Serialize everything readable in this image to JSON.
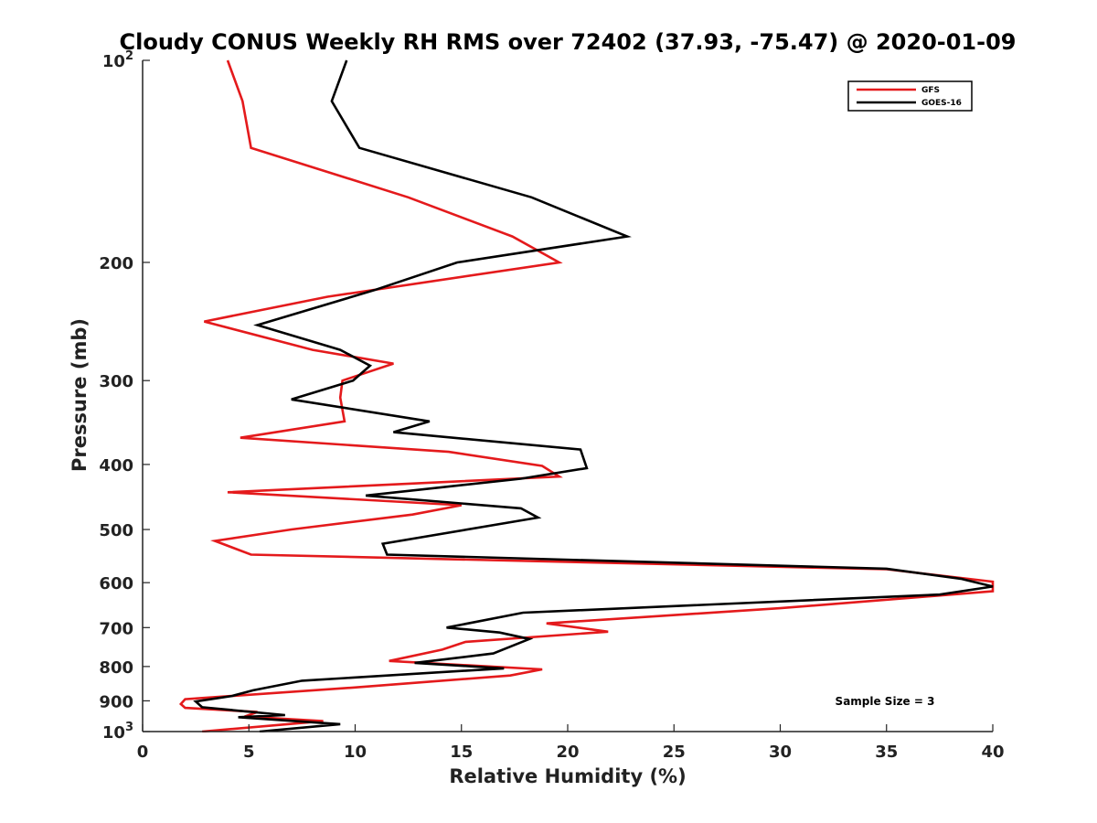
{
  "chart_data": {
    "type": "line",
    "title": "Cloudy CONUS Weekly RH RMS over 72402 (37.93, -75.47) @ 2020-01-09",
    "xlabel": "Relative Humidity (%)",
    "ylabel": "Pressure (mb)",
    "xlim": [
      0,
      40
    ],
    "ylim": [
      100,
      1000
    ],
    "y_scale": "log",
    "y_reversed": true,
    "grid": false,
    "legend_position": "top-right",
    "x_ticks": [
      0,
      5,
      10,
      15,
      20,
      25,
      30,
      35,
      40
    ],
    "x_tick_labels": [
      "0",
      "5",
      "10",
      "15",
      "20",
      "25",
      "30",
      "35",
      "40"
    ],
    "y_ticks": [
      100,
      200,
      300,
      400,
      500,
      600,
      700,
      800,
      900,
      1000
    ],
    "y_tick_labels": [
      {
        "base": "10",
        "exp": "2"
      },
      {
        "base": "200"
      },
      {
        "base": "300"
      },
      {
        "base": "400"
      },
      {
        "base": "500"
      },
      {
        "base": "600"
      },
      {
        "base": "700"
      },
      {
        "base": "800"
      },
      {
        "base": "900"
      },
      {
        "base": "10",
        "exp": "3"
      }
    ],
    "annotation": "Sample Size = 3",
    "series": [
      {
        "name": "GFS",
        "color": "#e41a1c",
        "points": [
          {
            "x": 4.0,
            "p": 100
          },
          {
            "x": 4.7,
            "p": 115
          },
          {
            "x": 5.1,
            "p": 135
          },
          {
            "x": 12.5,
            "p": 160
          },
          {
            "x": 17.4,
            "p": 183
          },
          {
            "x": 19.6,
            "p": 200
          },
          {
            "x": 8.7,
            "p": 225
          },
          {
            "x": 2.9,
            "p": 245
          },
          {
            "x": 8.0,
            "p": 270
          },
          {
            "x": 11.8,
            "p": 283
          },
          {
            "x": 9.4,
            "p": 300
          },
          {
            "x": 9.3,
            "p": 318
          },
          {
            "x": 9.5,
            "p": 345
          },
          {
            "x": 4.6,
            "p": 365
          },
          {
            "x": 14.4,
            "p": 383
          },
          {
            "x": 18.8,
            "p": 402
          },
          {
            "x": 19.6,
            "p": 417
          },
          {
            "x": 4.0,
            "p": 440
          },
          {
            "x": 15.0,
            "p": 460
          },
          {
            "x": 12.7,
            "p": 475
          },
          {
            "x": 7.0,
            "p": 500
          },
          {
            "x": 3.4,
            "p": 520
          },
          {
            "x": 5.1,
            "p": 545
          },
          {
            "x": 35.0,
            "p": 573
          },
          {
            "x": 40.0,
            "p": 598
          },
          {
            "x": 40.0,
            "p": 618
          },
          {
            "x": 30.0,
            "p": 655
          },
          {
            "x": 19.0,
            "p": 690
          },
          {
            "x": 21.9,
            "p": 710
          },
          {
            "x": 15.2,
            "p": 735
          },
          {
            "x": 14.1,
            "p": 755
          },
          {
            "x": 11.6,
            "p": 785
          },
          {
            "x": 18.8,
            "p": 808
          },
          {
            "x": 17.3,
            "p": 825
          },
          {
            "x": 9.9,
            "p": 860
          },
          {
            "x": 2.0,
            "p": 895
          },
          {
            "x": 1.8,
            "p": 910
          },
          {
            "x": 2.0,
            "p": 922
          },
          {
            "x": 5.4,
            "p": 935
          },
          {
            "x": 4.8,
            "p": 950
          },
          {
            "x": 8.5,
            "p": 965
          },
          {
            "x": 2.8,
            "p": 1000
          }
        ]
      },
      {
        "name": "GOES-16",
        "color": "#000000",
        "points": [
          {
            "x": 9.6,
            "p": 100
          },
          {
            "x": 8.9,
            "p": 115
          },
          {
            "x": 10.2,
            "p": 135
          },
          {
            "x": 18.3,
            "p": 160
          },
          {
            "x": 22.8,
            "p": 183
          },
          {
            "x": 14.8,
            "p": 200
          },
          {
            "x": 10.9,
            "p": 220
          },
          {
            "x": 5.4,
            "p": 248
          },
          {
            "x": 9.3,
            "p": 270
          },
          {
            "x": 10.7,
            "p": 285
          },
          {
            "x": 9.9,
            "p": 300
          },
          {
            "x": 7.0,
            "p": 320
          },
          {
            "x": 13.5,
            "p": 345
          },
          {
            "x": 11.8,
            "p": 358
          },
          {
            "x": 20.6,
            "p": 380
          },
          {
            "x": 20.9,
            "p": 405
          },
          {
            "x": 17.8,
            "p": 420
          },
          {
            "x": 10.5,
            "p": 445
          },
          {
            "x": 17.8,
            "p": 465
          },
          {
            "x": 18.6,
            "p": 480
          },
          {
            "x": 11.3,
            "p": 525
          },
          {
            "x": 11.5,
            "p": 545
          },
          {
            "x": 35.0,
            "p": 572
          },
          {
            "x": 38.5,
            "p": 592
          },
          {
            "x": 40.0,
            "p": 608
          },
          {
            "x": 37.5,
            "p": 625
          },
          {
            "x": 17.9,
            "p": 665
          },
          {
            "x": 14.3,
            "p": 700
          },
          {
            "x": 16.8,
            "p": 712
          },
          {
            "x": 18.2,
            "p": 728
          },
          {
            "x": 16.5,
            "p": 765
          },
          {
            "x": 12.8,
            "p": 790
          },
          {
            "x": 17.0,
            "p": 805
          },
          {
            "x": 7.5,
            "p": 840
          },
          {
            "x": 5.2,
            "p": 868
          },
          {
            "x": 4.2,
            "p": 885
          },
          {
            "x": 2.5,
            "p": 902
          },
          {
            "x": 2.8,
            "p": 920
          },
          {
            "x": 6.7,
            "p": 945
          },
          {
            "x": 4.5,
            "p": 952
          },
          {
            "x": 9.3,
            "p": 975
          },
          {
            "x": 5.5,
            "p": 1000
          }
        ]
      }
    ]
  }
}
